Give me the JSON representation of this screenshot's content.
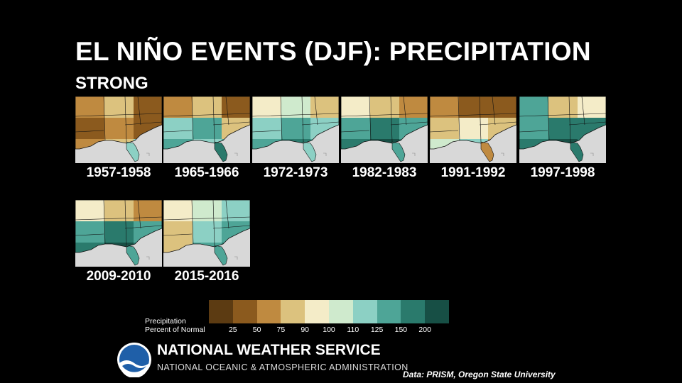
{
  "slide": {
    "title": "EL NIÑO EVENTS (DJF): PRECIPITATION",
    "subtitle": "STRONG"
  },
  "maps": [
    {
      "years": "1957-1958",
      "pattern": "dry"
    },
    {
      "years": "1965-1966",
      "pattern": "mixed-dry-east"
    },
    {
      "years": "1972-1973",
      "pattern": "wet-south"
    },
    {
      "years": "1982-1983",
      "pattern": "wet-dry-north"
    },
    {
      "years": "1991-1992",
      "pattern": "dry-north"
    },
    {
      "years": "1997-1998",
      "pattern": "wet"
    },
    {
      "years": "2009-2010",
      "pattern": "wet-dry-north"
    },
    {
      "years": "2015-2016",
      "pattern": "wet-dry-southwest"
    }
  ],
  "legend": {
    "label_line1": "Precipitation",
    "label_line2": "Percent of Normal",
    "colors": [
      "#5c3b12",
      "#8b5a1e",
      "#bf8a40",
      "#dcc27e",
      "#f4ecc8",
      "#cfeacd",
      "#8cd0c4",
      "#4ea597",
      "#2a7a6c",
      "#174f45"
    ],
    "ticks": [
      "25",
      "50",
      "75",
      "90",
      "100",
      "110",
      "125",
      "150",
      "200"
    ]
  },
  "footer": {
    "org_name": "NATIONAL WEATHER SERVICE",
    "parent_org": "NATIONAL OCEANIC & ATMOSPHERIC ADMINISTRATION",
    "logo_text": "NOAA",
    "source": "Data: PRISM, Oregon State University"
  },
  "colors": {
    "land_outside": "#d8d8d8",
    "water": "#dedede",
    "borders": "#111111"
  }
}
